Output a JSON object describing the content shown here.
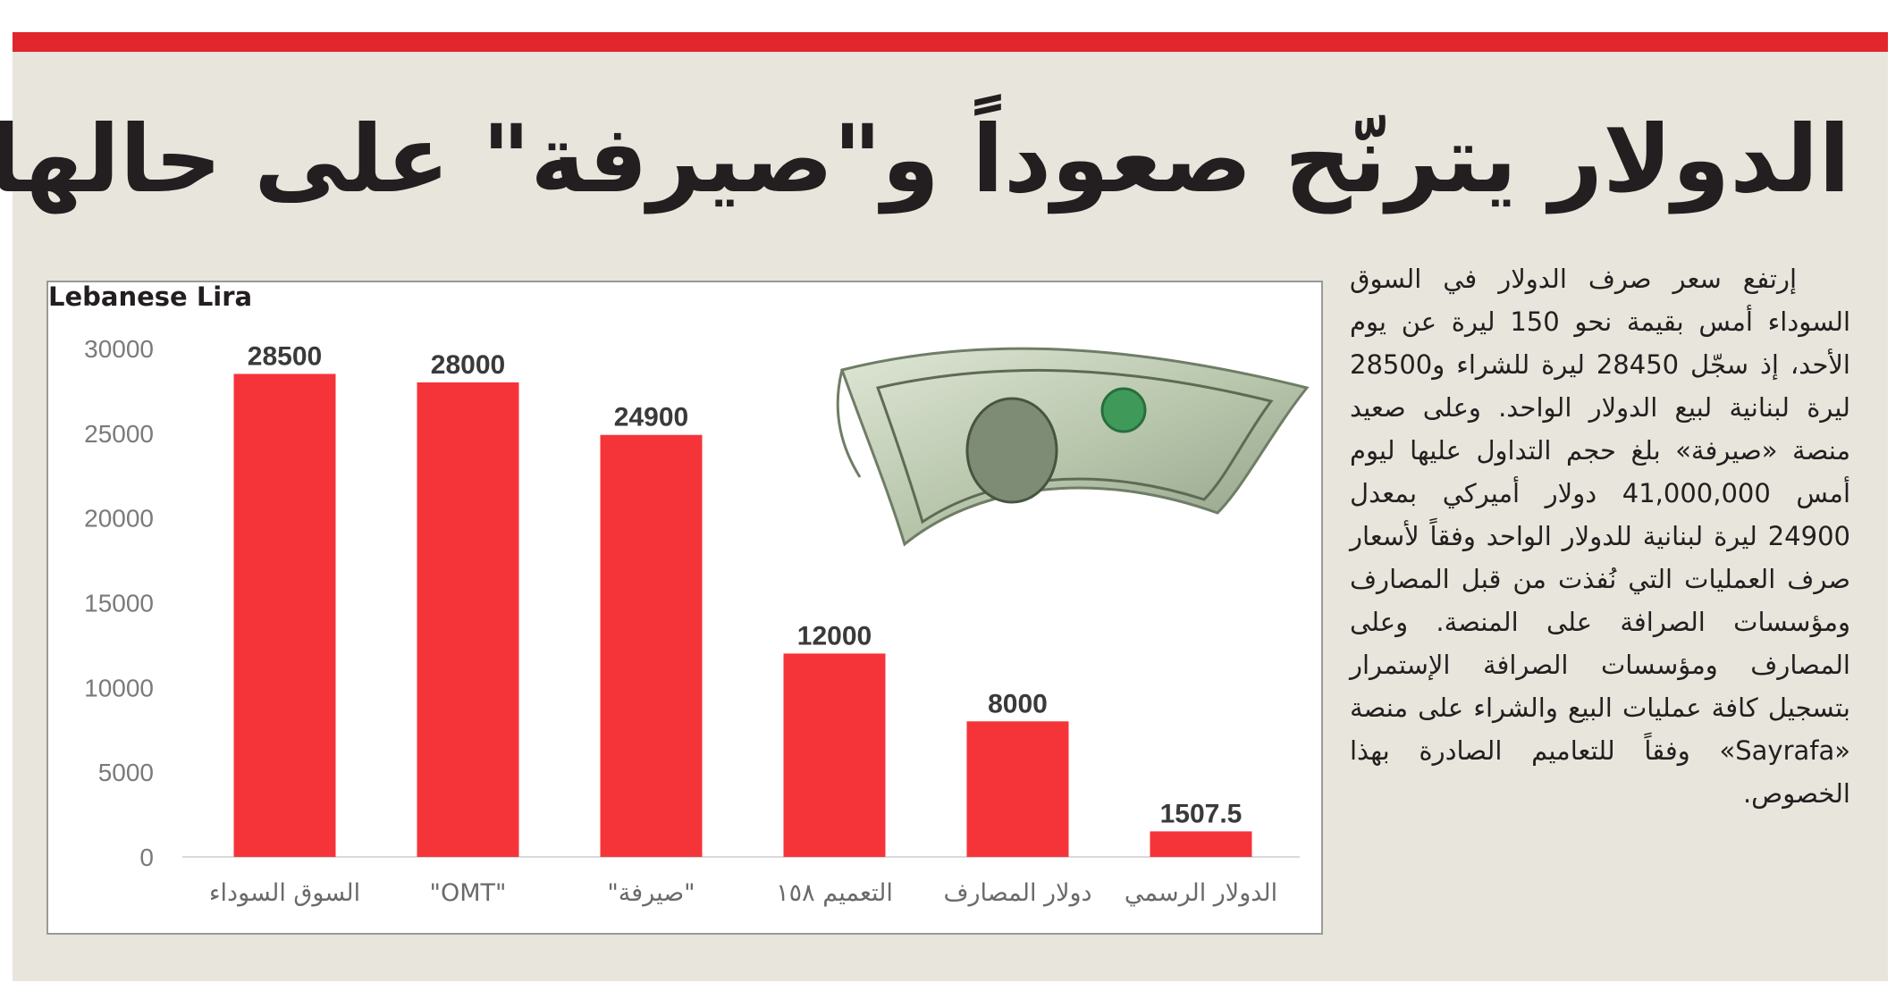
{
  "headline": "الدولار يترنّح صعوداً و\"صيرفة\" على حالها",
  "article": {
    "text": "إرتفع سعر صرف الدولار في السوق السوداء أمس بقيمة نحو 150 ليرة عن يوم الأحد، إذ سجّل 28450 ليرة للشراء و28500 ليرة لبنانية لبيع الدولار الواحد. وعلى صعيد منصة «صيرفة» بلغ حجم التداول عليها ليوم أمس 41,000,000 دولار أميركي بمعدل 24900 ليرة لبنانية للدولار الواحد وفقاً لأسعار صرف العمليات التي نُفذت من قبل المصارف ومؤسسات الصرافة على المنصة. وعلى المصارف ومؤسسات الصرافة الإستمرار بتسجيل كافة عمليات البيع والشراء على منصة «Sayrafa» وفقاً للتعاميم الصادرة بهذا الخصوص."
  },
  "colors": {
    "top_bar": "#e1262d",
    "panel": "#e8e5dc",
    "bar": "#f5343a",
    "text": "#231f20",
    "axis_text": "#7a7a7a"
  },
  "chart_data": {
    "type": "bar",
    "ylabel": "Lebanese Lira",
    "categories": [
      "السوق السوداء",
      "\"OMT\"",
      "\"صيرفة\"",
      "التعميم ١٥٨",
      "دولار المصارف",
      "الدولار الرسمي"
    ],
    "values": [
      28500,
      28000,
      24900,
      12000,
      8000,
      1507.5
    ],
    "value_labels": [
      "28500",
      "28000",
      "24900",
      "12000",
      "8000",
      "1507.5"
    ],
    "yticks": [
      "0",
      "5000",
      "10000",
      "15000",
      "20000",
      "25000",
      "30000"
    ],
    "ylim": [
      0,
      30000
    ],
    "grid": false,
    "legend": "none"
  },
  "illustration": {
    "icon": "dollar-bill-icon"
  }
}
